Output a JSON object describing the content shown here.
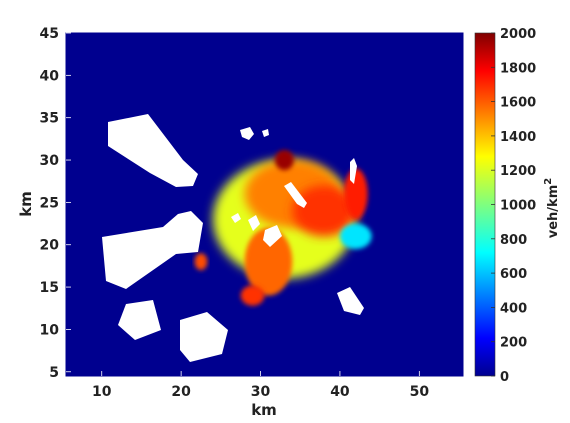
{
  "chart_data": {
    "type": "heatmap",
    "xlabel": "km",
    "ylabel": "km",
    "xlim": [
      5.5,
      55.5
    ],
    "ylim": [
      4.5,
      45
    ],
    "xticks": [
      "10",
      "20",
      "30",
      "40",
      "50"
    ],
    "yticks": [
      "5",
      "10",
      "15",
      "20",
      "25",
      "30",
      "35",
      "40",
      "45"
    ],
    "colorbar": {
      "label": "veh/km",
      "label_superscript": "2",
      "range": [
        0,
        2000
      ],
      "ticks": [
        "0",
        "200",
        "400",
        "600",
        "800",
        "1000",
        "1200",
        "1400",
        "1600",
        "1800",
        "2000"
      ],
      "colormap": "jet"
    },
    "background_value": 0,
    "density_regions": [
      {
        "cx": 33,
        "cy": 23,
        "rx": 9,
        "ry": 7,
        "value": 1200
      },
      {
        "cx": 34,
        "cy": 26,
        "rx": 6,
        "ry": 4,
        "value": 1500
      },
      {
        "cx": 38,
        "cy": 24,
        "rx": 4,
        "ry": 3,
        "value": 1650
      },
      {
        "cx": 33,
        "cy": 30,
        "rx": 1.2,
        "ry": 1.2,
        "value": 1950
      },
      {
        "cx": 31,
        "cy": 18,
        "rx": 3,
        "ry": 4,
        "value": 1550
      },
      {
        "cx": 29,
        "cy": 14,
        "rx": 1.5,
        "ry": 1.2,
        "value": 1650
      },
      {
        "cx": 22.5,
        "cy": 18,
        "rx": 0.8,
        "ry": 1,
        "value": 1600
      },
      {
        "cx": 42,
        "cy": 26,
        "rx": 1.5,
        "ry": 3,
        "value": 1700
      },
      {
        "cx": 42,
        "cy": 21,
        "rx": 2,
        "ry": 1.5,
        "value": 700
      }
    ],
    "blank_regions": 11
  }
}
